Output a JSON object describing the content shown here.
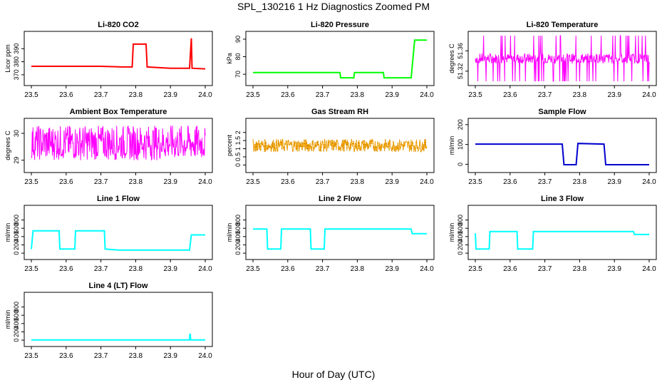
{
  "figure": {
    "title": "SPL_130216  1 Hz Diagnostics Zoomed PM",
    "xlabel": "Hour of Day (UTC)"
  },
  "chart_data": [
    {
      "type": "line",
      "title": "Li-820 CO2",
      "ylabel": "Licor ppm",
      "color": "#ff0000",
      "xlim": [
        23.5,
        24.0
      ],
      "ylim": [
        365,
        400
      ],
      "xticks": [
        "23.5",
        "23.6",
        "23.7",
        "23.8",
        "23.9",
        "24.0"
      ],
      "yticks": [
        370,
        380,
        390
      ],
      "series": [
        {
          "x": [
            23.5,
            23.6,
            23.7,
            23.76,
            23.79,
            23.793,
            23.83,
            23.833,
            23.9,
            23.955,
            23.96,
            23.962,
            24.0
          ],
          "y": [
            376.5,
            376.5,
            376.5,
            376.0,
            376.0,
            393.5,
            393.5,
            376.0,
            375.0,
            375.0,
            398.0,
            375.0,
            374.5
          ]
        }
      ]
    },
    {
      "type": "line",
      "title": "Li-820 Pressure",
      "ylabel": "kPa",
      "color": "#00ff00",
      "xlim": [
        23.5,
        24.0
      ],
      "ylim": [
        66,
        92
      ],
      "xticks": [
        "23.5",
        "23.6",
        "23.7",
        "23.8",
        "23.9",
        "24.0"
      ],
      "yticks": [
        70,
        80,
        90
      ],
      "series": [
        {
          "x": [
            23.5,
            23.75,
            23.752,
            23.79,
            23.792,
            23.875,
            23.877,
            23.955,
            23.965,
            24.0
          ],
          "y": [
            71,
            71,
            68,
            68,
            71,
            71,
            68,
            68,
            89.5,
            89.5
          ]
        }
      ]
    },
    {
      "type": "line",
      "title": "Li-820 Temperature",
      "ylabel": "degrees C",
      "color": "#ff00ff",
      "xlim": [
        23.5,
        24.0
      ],
      "ylim": [
        51.3,
        51.39
      ],
      "xticks": [
        "23.5",
        "23.6",
        "23.7",
        "23.8",
        "23.9",
        "24.0"
      ],
      "yticks": [
        51.32,
        51.36
      ],
      "series": [
        {
          "x": [
            23.5,
            23.6,
            23.7,
            23.8,
            23.9,
            24.0
          ],
          "y": [
            51.345,
            51.345,
            51.345,
            51.345,
            51.345,
            51.345
          ],
          "band": [
            51.335,
            51.355
          ],
          "spikes": [
            51.3,
            51.39
          ]
        }
      ]
    },
    {
      "type": "line",
      "title": "Ambient Box Temperature",
      "ylabel": "degrees C",
      "color": "#ff00ff",
      "xlim": [
        23.5,
        24.0
      ],
      "ylim": [
        28.7,
        30.4
      ],
      "xticks": [
        "23.5",
        "23.6",
        "23.7",
        "23.8",
        "23.9",
        "24.0"
      ],
      "yticks": [
        29.0,
        30.0
      ],
      "series": [
        {
          "x": [
            23.5,
            23.6,
            23.7,
            23.8,
            23.9,
            24.0
          ],
          "y": [
            29.5,
            29.5,
            29.5,
            29.5,
            29.5,
            29.5
          ],
          "band": [
            29.0,
            30.3
          ]
        }
      ]
    },
    {
      "type": "line",
      "title": "Gas Stream RH",
      "ylabel": "percent",
      "color": "#ffa500",
      "xlim": [
        23.5,
        24.0
      ],
      "ylim": [
        -0.2,
        2.6
      ],
      "xticks": [
        "23.5",
        "23.6",
        "23.7",
        "23.8",
        "23.9",
        "24.0"
      ],
      "yticks": [
        0.0,
        0.5,
        1.0,
        1.5,
        2.0
      ],
      "series": [
        {
          "x": [
            23.5,
            23.6,
            23.7,
            23.8,
            23.9,
            24.0
          ],
          "y": [
            1.2,
            1.2,
            1.2,
            1.2,
            1.2,
            1.2
          ],
          "band": [
            0.8,
            1.6
          ]
        }
      ]
    },
    {
      "type": "line",
      "title": "Sample Flow",
      "ylabel": "ml/min",
      "color": "#0000cd",
      "xlim": [
        23.5,
        24.0
      ],
      "ylim": [
        -20,
        210
      ],
      "xticks": [
        "23.5",
        "23.6",
        "23.7",
        "23.8",
        "23.9",
        "24.0"
      ],
      "yticks": [
        0,
        100,
        200
      ],
      "series": [
        {
          "x": [
            23.5,
            23.75,
            23.755,
            23.79,
            23.795,
            23.87,
            23.875,
            24.0
          ],
          "y": [
            102,
            102,
            -2,
            -2,
            105,
            102,
            -2,
            -2
          ]
        }
      ]
    },
    {
      "type": "line",
      "title": "Line 1 Flow",
      "ylabel": "ml/min",
      "color": "#00ffff",
      "xlim": [
        23.5,
        24.0
      ],
      "ylim": [
        -50,
        1050
      ],
      "xticks": [
        "23.5",
        "23.6",
        "23.7",
        "23.8",
        "23.9",
        "24.0"
      ],
      "yticks": [
        0,
        200,
        400,
        600,
        800
      ],
      "series": [
        {
          "x": [
            23.5,
            23.505,
            23.58,
            23.582,
            23.625,
            23.627,
            23.71,
            23.712,
            23.75,
            23.955,
            23.96,
            24.0
          ],
          "y": [
            100,
            540,
            540,
            100,
            100,
            540,
            540,
            100,
            75,
            75,
            440,
            440
          ]
        }
      ]
    },
    {
      "type": "line",
      "title": "Line 2 Flow",
      "ylabel": "ml/min",
      "color": "#00ffff",
      "xlim": [
        23.5,
        24.0
      ],
      "ylim": [
        -50,
        1050
      ],
      "xticks": [
        "23.5",
        "23.6",
        "23.7",
        "23.8",
        "23.9",
        "24.0"
      ],
      "yticks": [
        0,
        200,
        400,
        600,
        800
      ],
      "series": [
        {
          "x": [
            23.5,
            23.54,
            23.542,
            23.58,
            23.582,
            23.665,
            23.667,
            23.705,
            23.707,
            23.955,
            23.958,
            24.0
          ],
          "y": [
            580,
            580,
            100,
            100,
            580,
            580,
            100,
            100,
            580,
            580,
            470,
            470
          ]
        }
      ]
    },
    {
      "type": "line",
      "title": "Line 3 Flow",
      "ylabel": "ml/min",
      "color": "#00ffff",
      "xlim": [
        23.5,
        24.0
      ],
      "ylim": [
        -50,
        1050
      ],
      "xticks": [
        "23.5",
        "23.6",
        "23.7",
        "23.8",
        "23.9",
        "24.0"
      ],
      "yticks": [
        0,
        200,
        400,
        600,
        800
      ],
      "series": [
        {
          "x": [
            23.5,
            23.502,
            23.54,
            23.542,
            23.62,
            23.622,
            23.665,
            23.667,
            23.955,
            23.958,
            24.0
          ],
          "y": [
            480,
            100,
            100,
            520,
            520,
            100,
            100,
            520,
            520,
            450,
            450
          ]
        }
      ]
    },
    {
      "type": "line",
      "title": "Line 4 (LT) Flow",
      "ylabel": "ml/min",
      "color": "#00ffff",
      "xlim": [
        23.5,
        24.0
      ],
      "ylim": [
        -50,
        1050
      ],
      "xticks": [
        "23.5",
        "23.6",
        "23.7",
        "23.8",
        "23.9",
        "24.0"
      ],
      "yticks": [
        0,
        200,
        400,
        600,
        800
      ],
      "series": [
        {
          "x": [
            23.5,
            23.955,
            23.956,
            23.957,
            23.958,
            24.0
          ],
          "y": [
            5,
            5,
            140,
            140,
            5,
            5
          ]
        }
      ]
    }
  ]
}
